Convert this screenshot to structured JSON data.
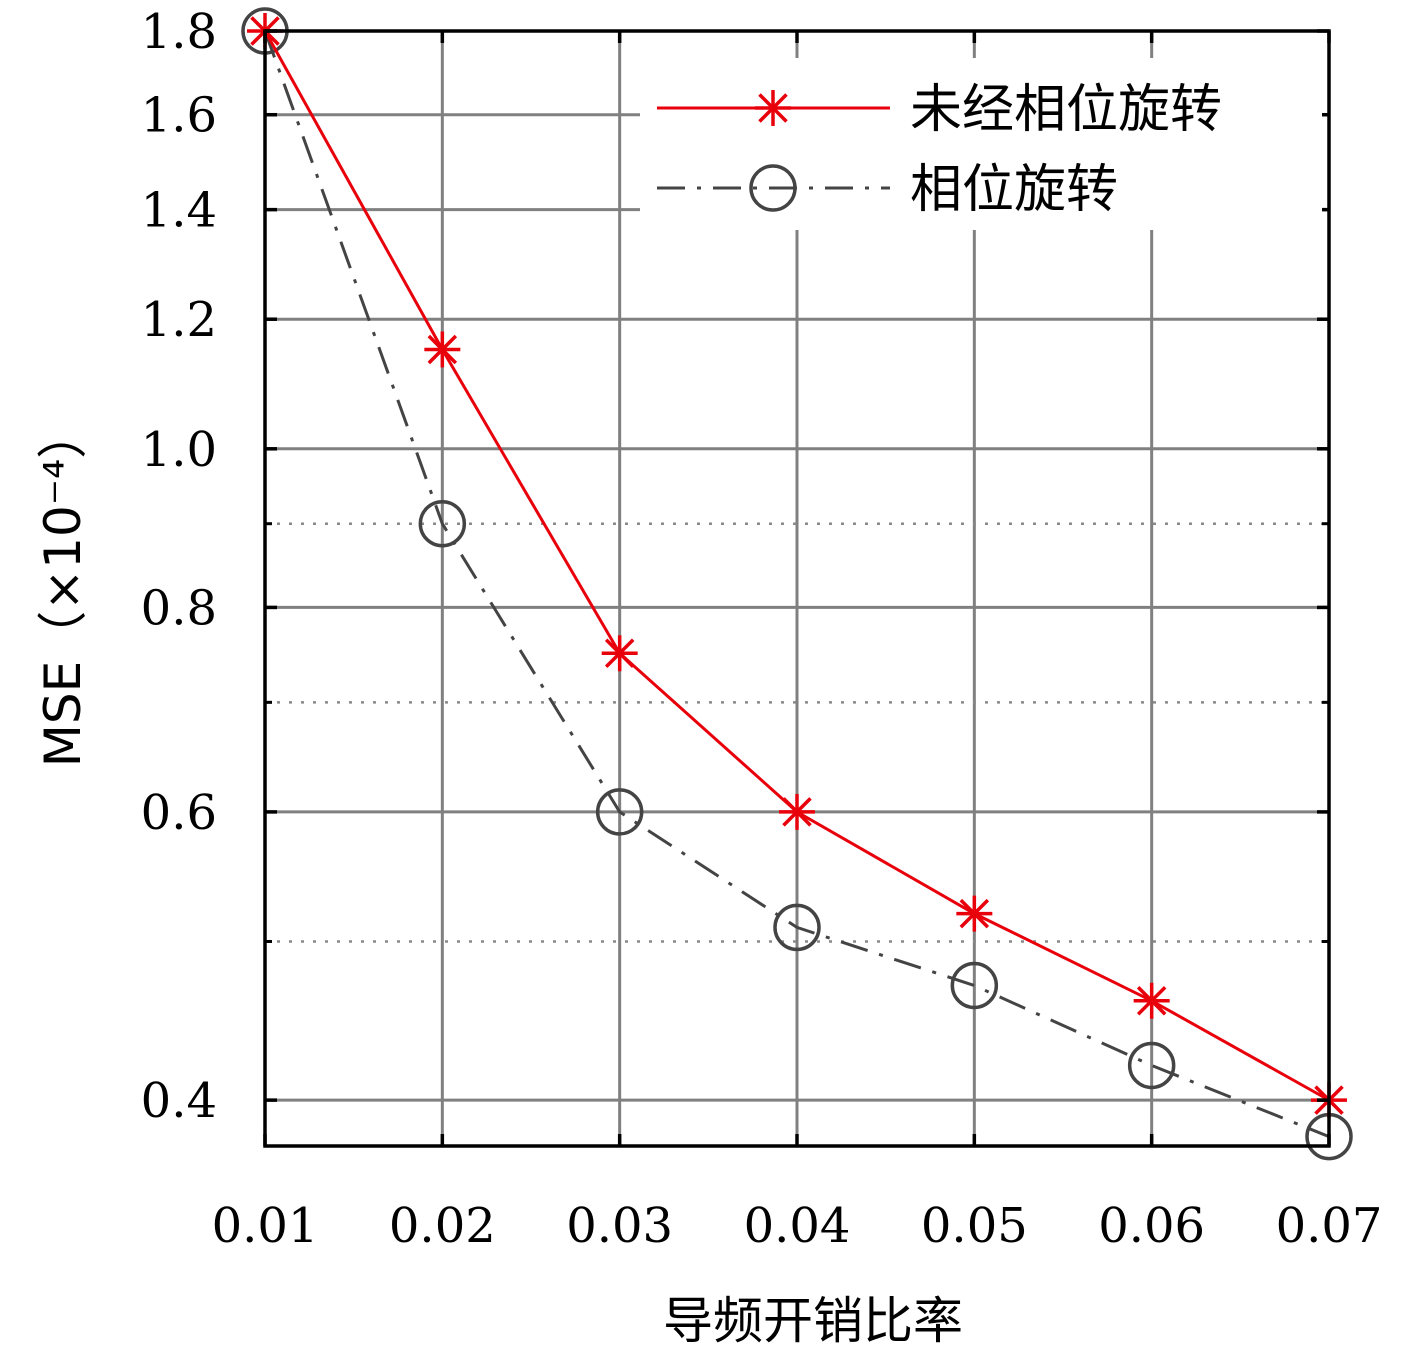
{
  "chart_data": {
    "type": "line",
    "title": "",
    "xlabel": "导频开销比率",
    "ylabel": "MSE（×10⁻⁴）",
    "x": [
      0.01,
      0.02,
      0.03,
      0.04,
      0.05,
      0.06,
      0.07
    ],
    "x_tick_labels": [
      "0.01",
      "0.02",
      "0.03",
      "0.04",
      "0.05",
      "0.06",
      "0.07"
    ],
    "xlim": [
      0.01,
      0.07
    ],
    "y_scale": "log",
    "ylim": [
      0.375,
      1.8
    ],
    "y_ticks": [
      0.4,
      0.6,
      0.8,
      1.0,
      1.2,
      1.4,
      1.6,
      1.8
    ],
    "y_tick_labels": [
      "0.4",
      "0.6",
      "0.8",
      "1.0",
      "1.2",
      "1.4",
      "1.6",
      "1.8"
    ],
    "y_minor_gridlines": [
      0.5,
      0.7,
      0.9
    ],
    "grid": true,
    "legend_position": "top-right",
    "series": [
      {
        "name": "未经相位旋转",
        "values": [
          1.8,
          1.15,
          0.75,
          0.6,
          0.52,
          0.46,
          0.4
        ],
        "color": "#e8000b",
        "line_style": "solid",
        "marker": "asterisk"
      },
      {
        "name": "相位旋转",
        "values": [
          1.8,
          0.9,
          0.6,
          0.51,
          0.47,
          0.42,
          0.38
        ],
        "color": "#444444",
        "line_style": "dash-dot",
        "marker": "circle"
      }
    ]
  }
}
